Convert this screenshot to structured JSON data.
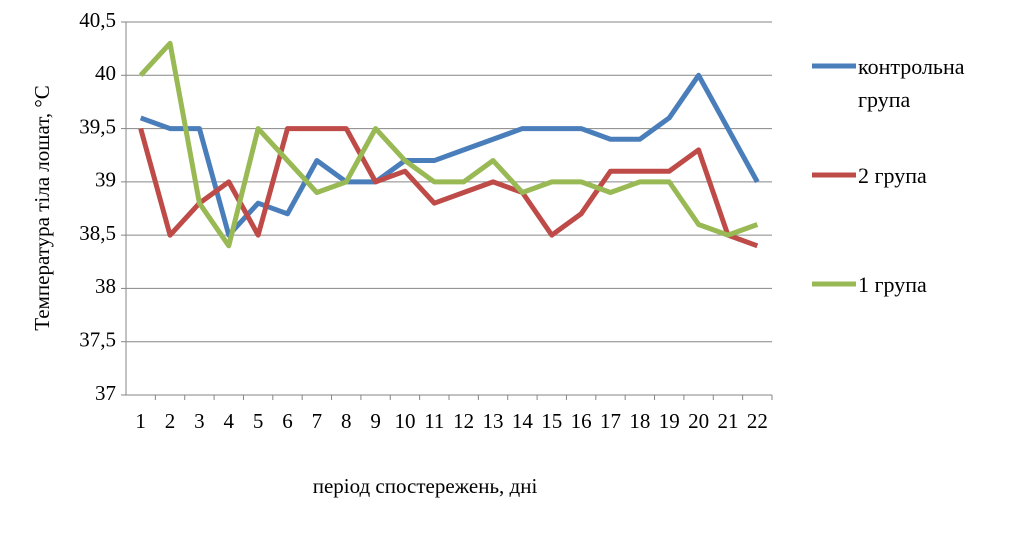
{
  "chart_data": {
    "type": "line",
    "y_label": "Температура тіла лошат, °С",
    "x_label": "період спостережень, дні",
    "categories": [
      "1",
      "2",
      "3",
      "4",
      "5",
      "6",
      "7",
      "8",
      "9",
      "10",
      "11",
      "12",
      "13",
      "14",
      "15",
      "16",
      "17",
      "18",
      "19",
      "20",
      "21",
      "22"
    ],
    "series": [
      {
        "name": "контрольна група",
        "color": "#4a7ebb",
        "values": [
          39.6,
          39.5,
          39.5,
          38.5,
          38.8,
          38.7,
          39.2,
          39.0,
          39.0,
          39.2,
          39.2,
          39.3,
          39.4,
          39.5,
          39.5,
          39.5,
          39.4,
          39.4,
          39.6,
          40.0,
          39.5,
          39.0
        ]
      },
      {
        "name": "2 група",
        "color": "#be4b48",
        "values": [
          39.5,
          38.5,
          38.8,
          39.0,
          38.5,
          39.5,
          39.5,
          39.5,
          39.0,
          39.1,
          38.8,
          38.9,
          39.0,
          38.9,
          38.5,
          38.7,
          39.1,
          39.1,
          39.1,
          39.3,
          38.5,
          38.4
        ]
      },
      {
        "name": "1 група",
        "color": "#98b954",
        "values": [
          40.0,
          40.3,
          38.8,
          38.4,
          39.5,
          39.2,
          38.9,
          39.0,
          39.5,
          39.2,
          39.0,
          39.0,
          39.2,
          38.9,
          39.0,
          39.0,
          38.9,
          39.0,
          39.0,
          38.6,
          38.5,
          38.6
        ]
      }
    ],
    "ylim": [
      37,
      40.5
    ],
    "yticks": [
      37,
      {
        "value": 37.5,
        "label": "37,5"
      },
      38,
      {
        "value": 38.5,
        "label": "38,5"
      },
      39,
      {
        "value": 39.5,
        "label": "39,5"
      },
      40,
      {
        "value": 40.5,
        "label": "40,5"
      }
    ],
    "grid": true
  }
}
